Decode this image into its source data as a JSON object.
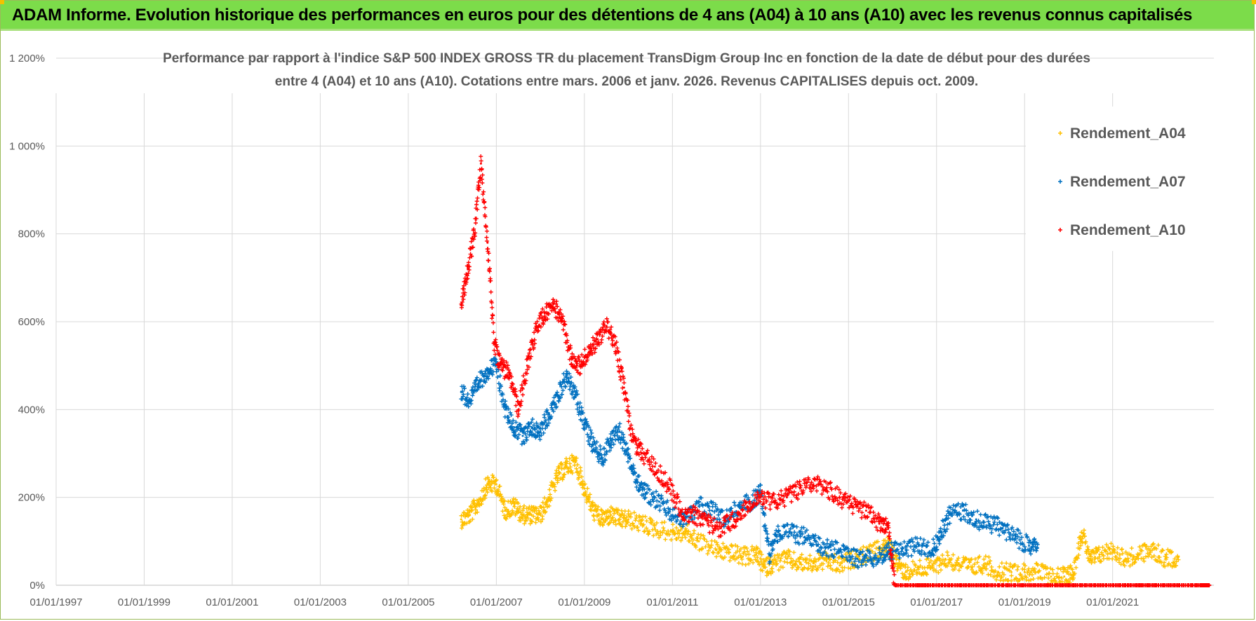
{
  "banner": {
    "title": "ADAM Informe. Evolution historique des performances en euros pour des détentions de 4 ans (A04) à 10 ans (A10) avec les revenus connus capitalisés",
    "colors": {
      "background": "#7cdc4a",
      "accent": "#f2c200"
    }
  },
  "chart_data": {
    "type": "scatter",
    "title_line1": "Performance par rapport à l'indice S&P 500 INDEX GROSS TR  du placement TransDigm Group Inc en fonction de la date de début pour des durées",
    "title_line2": "entre 4 (A04) et 10 ans (A10).  Cotations entre mars. 2006 et janv. 2026.  Revenus CAPITALISES depuis oct. 2009.",
    "xlabel": "",
    "ylabel": "",
    "xlim": [
      1997.0,
      2023.3
    ],
    "ylim": [
      0,
      12
    ],
    "y_ticks": [
      {
        "value": 0,
        "label": "0%"
      },
      {
        "value": 2,
        "label": "200%"
      },
      {
        "value": 4,
        "label": "400%"
      },
      {
        "value": 6,
        "label": "600%"
      },
      {
        "value": 8,
        "label": "800%"
      },
      {
        "value": 10,
        "label": "1 000%"
      },
      {
        "value": 12,
        "label": "1 200%"
      }
    ],
    "x_ticks": [
      {
        "value": 1997,
        "label": "01/01/1997"
      },
      {
        "value": 1999,
        "label": "01/01/1999"
      },
      {
        "value": 2001,
        "label": "01/01/2001"
      },
      {
        "value": 2003,
        "label": "01/01/2003"
      },
      {
        "value": 2005,
        "label": "01/01/2005"
      },
      {
        "value": 2007,
        "label": "01/01/2007"
      },
      {
        "value": 2009,
        "label": "01/01/2009"
      },
      {
        "value": 2011,
        "label": "01/01/2011"
      },
      {
        "value": 2013,
        "label": "01/01/2013"
      },
      {
        "value": 2015,
        "label": "01/01/2015"
      },
      {
        "value": 2017,
        "label": "01/01/2017"
      },
      {
        "value": 2019,
        "label": "01/01/2019"
      },
      {
        "value": 2021,
        "label": "01/01/2021"
      }
    ],
    "grid": true,
    "legend_position": "top-right",
    "series": [
      {
        "name": "Rendement_A04",
        "color": "#ffc000",
        "x": [
          2006.2,
          2006.4,
          2006.6,
          2006.8,
          2007.0,
          2007.2,
          2007.4,
          2007.6,
          2007.8,
          2008.0,
          2008.2,
          2008.4,
          2008.6,
          2008.8,
          2009.0,
          2009.2,
          2009.4,
          2009.6,
          2009.8,
          2010.0,
          2010.3,
          2010.6,
          2011.0,
          2011.3,
          2011.6,
          2012.0,
          2012.3,
          2012.6,
          2012.9,
          2013.1,
          2013.3,
          2013.6,
          2013.9,
          2014.2,
          2014.5,
          2014.8,
          2015.1,
          2015.4,
          2015.7,
          2015.9,
          2016.1,
          2016.3,
          2016.6,
          2016.9,
          2017.2,
          2017.5,
          2017.8,
          2018.1,
          2018.4,
          2018.7,
          2019.0,
          2019.3,
          2019.6,
          2019.9,
          2020.1,
          2020.3,
          2020.5,
          2020.7,
          2021.0,
          2021.3,
          2021.6,
          2021.9,
          2022.2,
          2022.5
        ],
        "y": [
          1.5,
          1.6,
          1.9,
          2.3,
          2.3,
          1.7,
          1.8,
          1.6,
          1.6,
          1.6,
          2.0,
          2.5,
          2.7,
          2.8,
          2.2,
          1.7,
          1.5,
          1.6,
          1.5,
          1.5,
          1.4,
          1.3,
          1.2,
          1.2,
          1.0,
          0.8,
          0.75,
          0.65,
          0.7,
          0.4,
          0.5,
          0.6,
          0.5,
          0.5,
          0.55,
          0.45,
          0.6,
          0.7,
          0.8,
          0.9,
          0.5,
          0.3,
          0.4,
          0.4,
          0.6,
          0.5,
          0.4,
          0.5,
          0.3,
          0.3,
          0.3,
          0.3,
          0.2,
          0.2,
          0.3,
          1.2,
          0.6,
          0.7,
          0.8,
          0.6,
          0.7,
          0.8,
          0.6,
          0.65
        ]
      },
      {
        "name": "Rendement_A07",
        "color": "#0070c0",
        "x": [
          2006.2,
          2006.4,
          2006.6,
          2006.8,
          2007.0,
          2007.2,
          2007.4,
          2007.6,
          2007.8,
          2008.0,
          2008.2,
          2008.4,
          2008.6,
          2008.8,
          2009.0,
          2009.2,
          2009.4,
          2009.6,
          2009.8,
          2010.0,
          2010.2,
          2010.4,
          2010.7,
          2011.0,
          2011.3,
          2011.6,
          2011.9,
          2012.2,
          2012.5,
          2012.8,
          2013.0,
          2013.2,
          2013.4,
          2013.7,
          2014.0,
          2014.3,
          2014.6,
          2014.9,
          2015.2,
          2015.5,
          2015.8,
          2016.0,
          2016.3,
          2016.6,
          2016.9,
          2017.1,
          2017.3,
          2017.6,
          2017.9,
          2018.2,
          2018.5,
          2018.8,
          2019.1,
          2019.3
        ],
        "y": [
          4.4,
          4.2,
          4.6,
          4.9,
          5.0,
          4.0,
          3.6,
          3.4,
          3.6,
          3.5,
          3.9,
          4.3,
          4.8,
          4.3,
          3.7,
          3.2,
          2.9,
          3.3,
          3.5,
          2.9,
          2.4,
          2.1,
          1.9,
          1.6,
          1.5,
          1.8,
          1.7,
          1.5,
          1.8,
          1.9,
          2.1,
          0.7,
          1.2,
          1.2,
          1.1,
          0.9,
          0.8,
          0.8,
          0.6,
          0.6,
          0.7,
          0.8,
          0.8,
          0.9,
          0.8,
          1.2,
          1.6,
          1.7,
          1.5,
          1.4,
          1.3,
          1.1,
          0.9,
          0.85
        ]
      },
      {
        "name": "Rendement_A10",
        "color": "#ff0000",
        "x": [
          2006.2,
          2006.35,
          2006.5,
          2006.65,
          2006.8,
          2006.95,
          2007.1,
          2007.3,
          2007.5,
          2007.7,
          2007.9,
          2008.1,
          2008.3,
          2008.5,
          2008.7,
          2008.9,
          2009.1,
          2009.3,
          2009.5,
          2009.7,
          2009.9,
          2010.1,
          2010.3,
          2010.6,
          2010.9,
          2011.2,
          2011.5,
          2011.8,
          2012.1,
          2012.4,
          2012.7,
          2013.0,
          2013.3,
          2013.6,
          2013.9,
          2014.2,
          2014.5,
          2014.8,
          2015.1,
          2015.4,
          2015.7,
          2015.9,
          2016.05,
          2016.5,
          2017.0,
          2017.5,
          2018.0,
          2018.5,
          2019.0,
          2019.5,
          2020.0,
          2020.5,
          2021.0,
          2021.5,
          2022.0,
          2022.5,
          2023.0,
          2023.2
        ],
        "y": [
          6.4,
          7.2,
          8.0,
          9.6,
          7.8,
          5.5,
          5.0,
          4.8,
          4.0,
          5.0,
          5.8,
          6.2,
          6.4,
          6.0,
          5.2,
          5.0,
          5.3,
          5.6,
          5.9,
          5.5,
          4.5,
          3.3,
          3.0,
          2.7,
          2.3,
          1.7,
          1.6,
          1.4,
          1.3,
          1.5,
          1.8,
          2.0,
          1.9,
          2.0,
          2.2,
          2.3,
          2.2,
          2.0,
          1.8,
          1.7,
          1.4,
          1.3,
          0.0,
          0.0,
          0.0,
          0.0,
          0.0,
          0.0,
          0.0,
          0.0,
          0.0,
          0.0,
          0.0,
          0.0,
          0.0,
          0.0,
          0.0,
          0.0
        ]
      }
    ]
  }
}
